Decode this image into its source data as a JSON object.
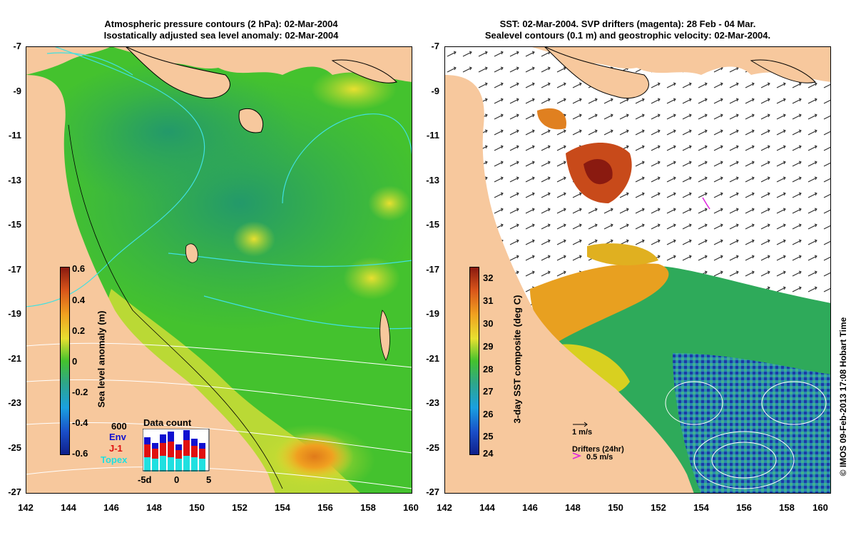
{
  "left_panel": {
    "title_line1": "Atmospheric pressure contours (2 hPa): 02-Mar-2004",
    "title_line2": "Isostatically adjusted sea level anomaly: 02-Mar-2004",
    "colorbar_label": "Sea level anomaly (m)",
    "colorbar_ticks": [
      "0.6",
      "0.4",
      "0.2",
      "0",
      "-0.2",
      "-0.4",
      "-0.6"
    ],
    "inset": {
      "title": "Data count",
      "max_label": "600",
      "legend": [
        "Env",
        "J-1",
        "Topex"
      ],
      "x_ticks": [
        "-5d",
        "0",
        "5"
      ]
    }
  },
  "right_panel": {
    "title_line1": "SST: 02-Mar-2004. SVP drifters (magenta): 28 Feb - 04 Mar.",
    "title_line2": "Sealevel contours (0.1 m) and geostrophic velocity: 02-Mar-2004.",
    "colorbar_label": "3-day SST composite (deg C)",
    "colorbar_ticks": [
      "32",
      "31",
      "30",
      "29",
      "28",
      "27",
      "26",
      "25",
      "24"
    ],
    "velocity_scale_label": "1 m/s",
    "drifter_label": "Drifters (24hr)",
    "drifter_speed_label": "0.5 m/s"
  },
  "axes": {
    "y_ticks": [
      "-7",
      "-9",
      "-11",
      "-13",
      "-15",
      "-17",
      "-19",
      "-21",
      "-23",
      "-25",
      "-27"
    ],
    "x_ticks": [
      "142",
      "144",
      "146",
      "148",
      "150",
      "152",
      "154",
      "156",
      "158",
      "160"
    ]
  },
  "credit": "© IMOS 09-Feb-2013 17:08 Hobart Time",
  "colors": {
    "land": "#f7c89d",
    "ocean_green": "#44c22e",
    "deep_green": "#2ea65a",
    "sst_blue": "#1a3ca8",
    "drifter": "#e020e0"
  }
}
